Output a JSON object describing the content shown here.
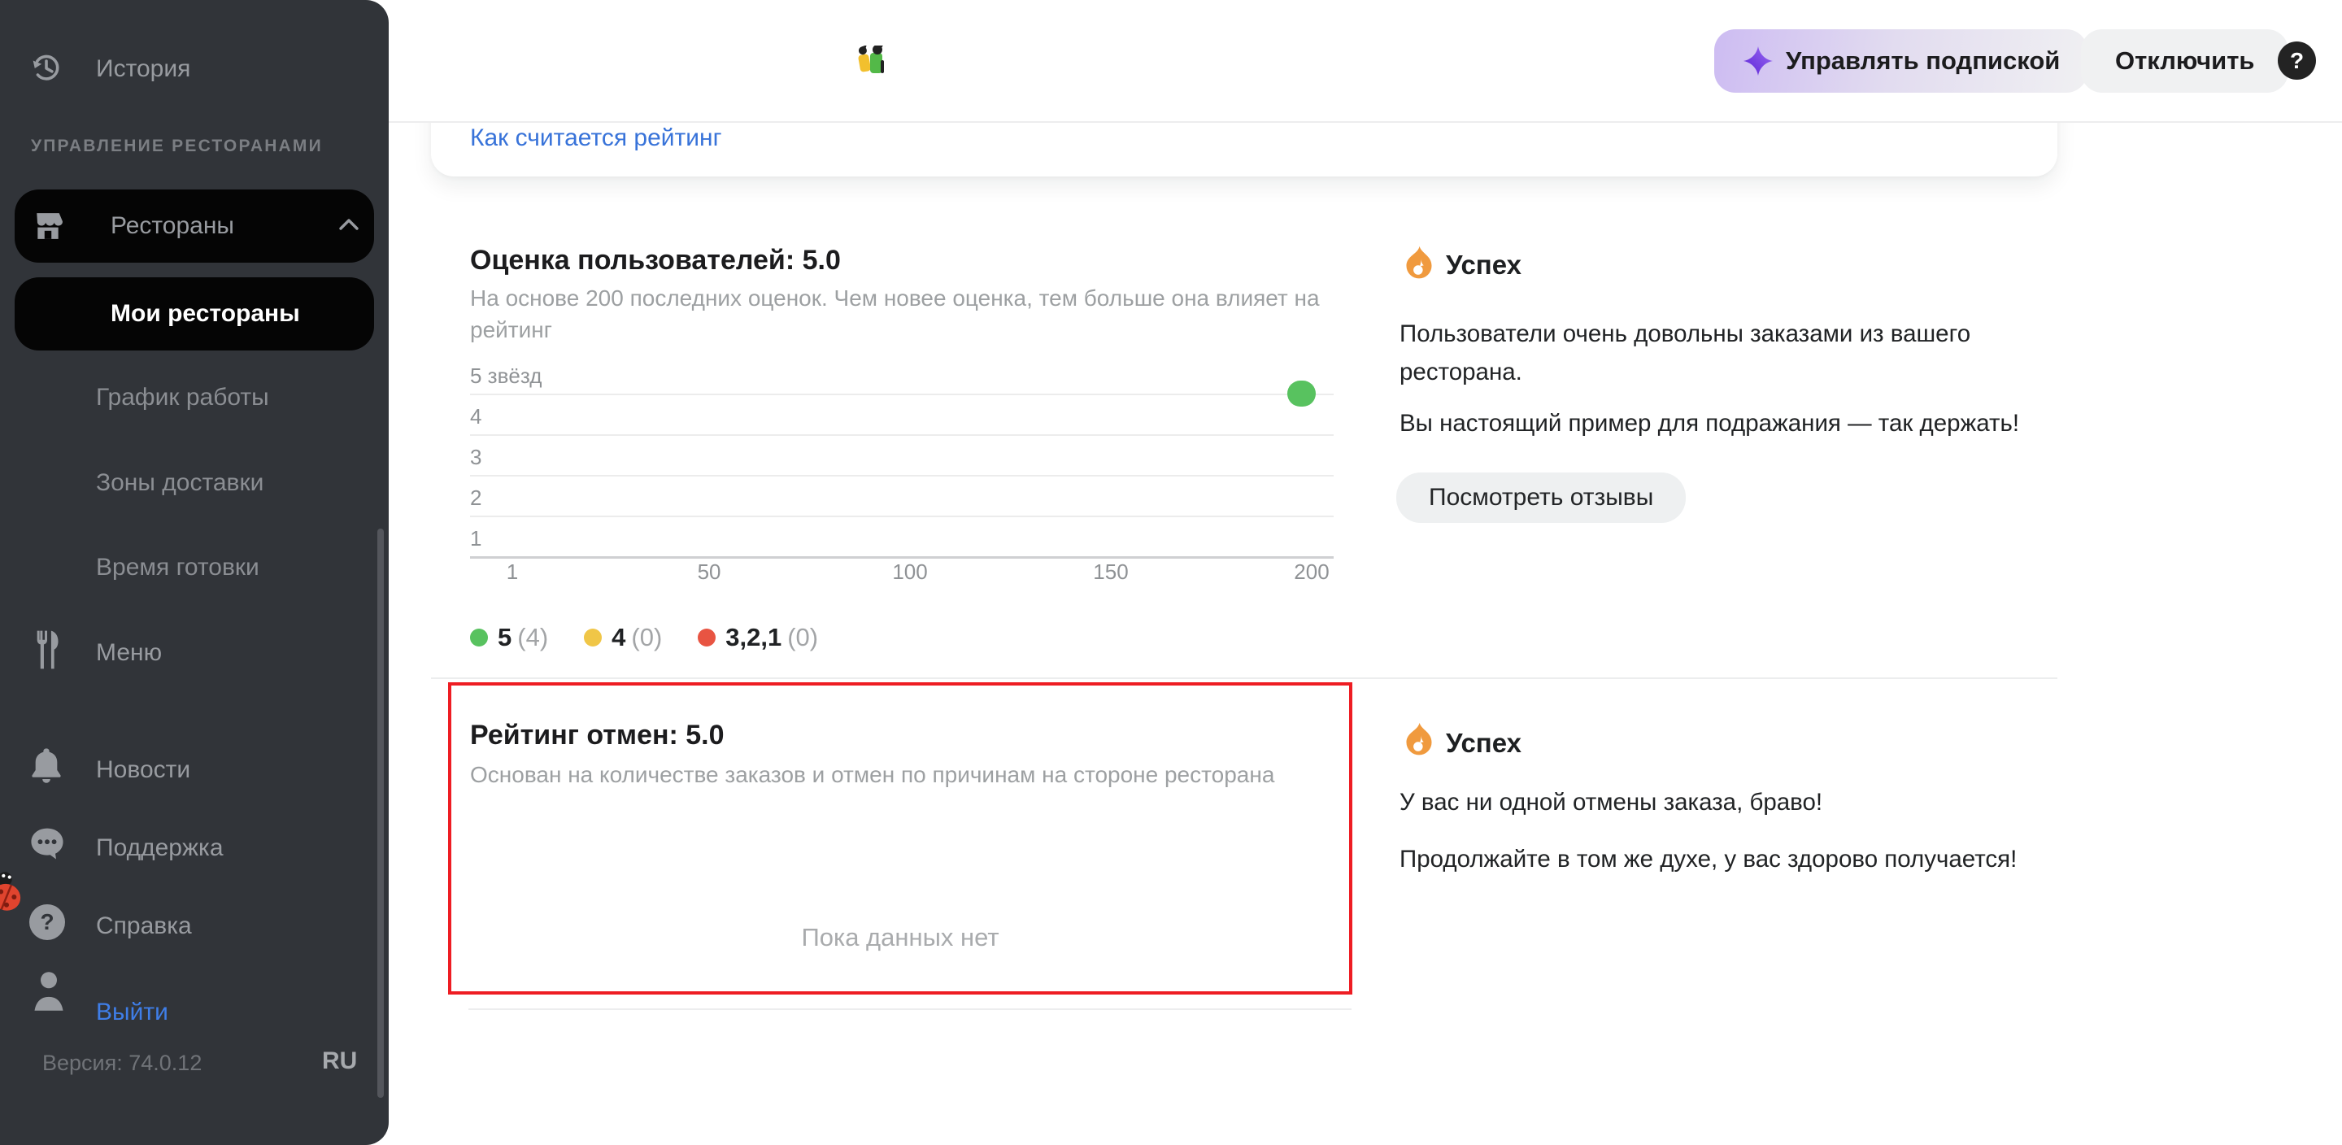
{
  "sidebar": {
    "history_label": "История",
    "section_label": "УПРАВЛЕНИЕ РЕСТОРАНАМИ",
    "restaurants_label": "Рестораны",
    "my_restaurants_label": "Мои рестораны",
    "schedule_label": "График работы",
    "delivery_zones_label": "Зоны доставки",
    "prep_time_label": "Время готовки",
    "menu_label": "Меню",
    "news_label": "Новости",
    "support_label": "Поддержка",
    "help_label": "Справка",
    "logout_label": "Выйти",
    "version": "Версия: 74.0.12",
    "language": "RU"
  },
  "header": {
    "manage_subscription_label": "Управлять подпиской",
    "disconnect_label": "Отключить",
    "help_label": "?"
  },
  "scrolled_card": {
    "how_rating_link": "Как считается рейтинг"
  },
  "user_rating": {
    "title": "Оценка пользователей: 5.0",
    "subtitle": "На основе 200 последних оценок. Чем новее оценка, тем больше она влияет на рейтинг"
  },
  "chart_data": {
    "type": "scatter",
    "title": "Оценка пользователей: 5.0",
    "y_rows": [
      "5 звёзд",
      "4",
      "3",
      "2",
      "1"
    ],
    "x_ticks": [
      "1",
      "50",
      "100",
      "150",
      "200"
    ],
    "x_range": [
      1,
      200
    ],
    "grid": "horizontal",
    "legend_position": "bottom",
    "series": [
      {
        "name": "5",
        "color": "#58c25f",
        "count": 4,
        "points": [
          {
            "row": 0,
            "x_start": 194,
            "x_end": 201
          }
        ]
      },
      {
        "name": "4",
        "color": "#f0c647",
        "count": 0,
        "points": []
      },
      {
        "name": "3,2,1",
        "color": "#e85442",
        "count": 0,
        "points": []
      }
    ],
    "legend": [
      {
        "label": "5",
        "count": "(4)",
        "color": "#58c25f"
      },
      {
        "label": "4",
        "count": "(0)",
        "color": "#f0c647"
      },
      {
        "label": "3,2,1",
        "count": "(0)",
        "color": "#e85442"
      }
    ]
  },
  "success_reviews": {
    "badge": "Успех",
    "line1": "Пользователи очень довольны заказами из вашего ресторана.",
    "line2": "Вы настоящий пример для подражания — так держать!",
    "button_label": "Посмотреть отзывы"
  },
  "cancel_rating": {
    "title": "Рейтинг отмен: 5.0",
    "subtitle": "Основан на количестве заказов и отмен по причинам на стороне ресторана",
    "empty_state": "Пока данных нет"
  },
  "success_cancels": {
    "badge": "Успех",
    "line1": "У вас ни одной отмены заказа, браво!",
    "line2": "Продолжайте в том же духе, у вас здорово получается!"
  },
  "colors": {
    "accent_blue": "#3873d9",
    "rating_green": "#58c25f",
    "rating_yellow": "#f0c647",
    "rating_red": "#e85442",
    "alert_red_border": "#ee1d23",
    "flame_orange": "#f09a3e",
    "sidebar_bg": "#313439",
    "subscription_purple": "#6d2fe0"
  },
  "icons": [
    "history-icon",
    "storefront-icon",
    "chevron-up-icon",
    "fork-knife-icon",
    "bell-icon",
    "chat-icon",
    "question-circle-icon",
    "person-icon",
    "ladybug-icon",
    "sparkle-icon",
    "duo-logo-icon",
    "flame-icon",
    "help-icon"
  ]
}
